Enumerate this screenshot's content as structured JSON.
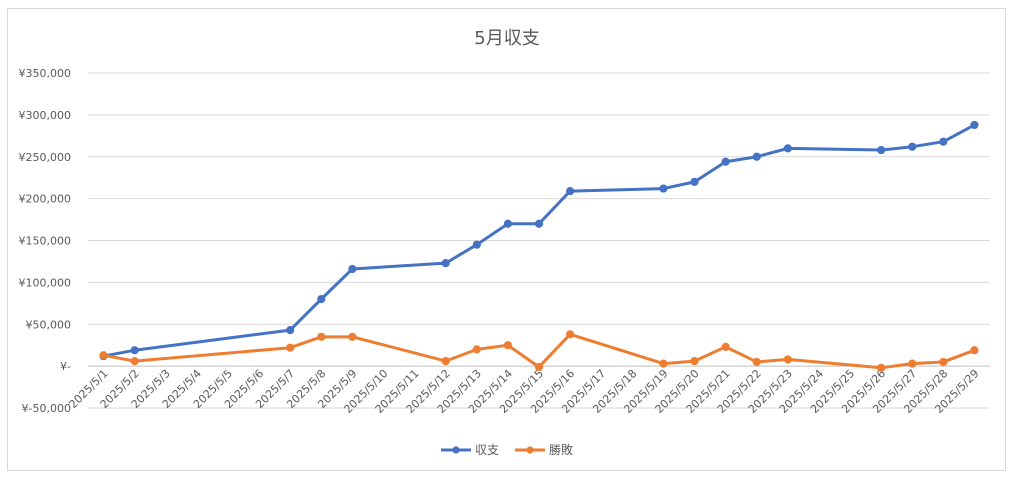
{
  "chart_data": {
    "type": "line",
    "title": "5月収支",
    "xlabel": "",
    "ylabel": "",
    "ylim": [
      -50000,
      350000
    ],
    "y_tick_labels": [
      "¥-50,000",
      "¥-",
      "¥50,000",
      "¥100,000",
      "¥150,000",
      "¥200,000",
      "¥250,000",
      "¥300,000",
      "¥350,000"
    ],
    "y_tick_values": [
      -50000,
      0,
      50000,
      100000,
      150000,
      200000,
      250000,
      300000,
      350000
    ],
    "categories": [
      "2025/5/1",
      "2025/5/2",
      "2025/5/3",
      "2025/5/4",
      "2025/5/5",
      "2025/5/6",
      "2025/5/7",
      "2025/5/8",
      "2025/5/9",
      "2025/5/10",
      "2025/5/11",
      "2025/5/12",
      "2025/5/13",
      "2025/5/14",
      "2025/5/15",
      "2025/5/16",
      "2025/5/17",
      "2025/5/18",
      "2025/5/19",
      "2025/5/20",
      "2025/5/21",
      "2025/5/22",
      "2025/5/23",
      "2025/5/24",
      "2025/5/25",
      "2025/5/26",
      "2025/5/27",
      "2025/5/28",
      "2025/5/29"
    ],
    "grid": true,
    "legend": "bottom",
    "series": [
      {
        "name": "収支",
        "color": "#4472c4",
        "values": [
          12000,
          19000,
          null,
          null,
          null,
          null,
          43000,
          80000,
          116000,
          null,
          null,
          123000,
          145000,
          170000,
          170000,
          209000,
          null,
          null,
          212000,
          220000,
          244000,
          250000,
          260000,
          null,
          null,
          258000,
          262000,
          268000,
          288000
        ]
      },
      {
        "name": "勝敗",
        "color": "#ed7d31",
        "values": [
          13000,
          6000,
          null,
          null,
          null,
          null,
          22000,
          35000,
          35000,
          null,
          null,
          6000,
          20000,
          25000,
          -1000,
          38000,
          null,
          null,
          3000,
          6000,
          23000,
          5000,
          8000,
          null,
          null,
          -2000,
          3000,
          5000,
          19000
        ]
      }
    ]
  }
}
